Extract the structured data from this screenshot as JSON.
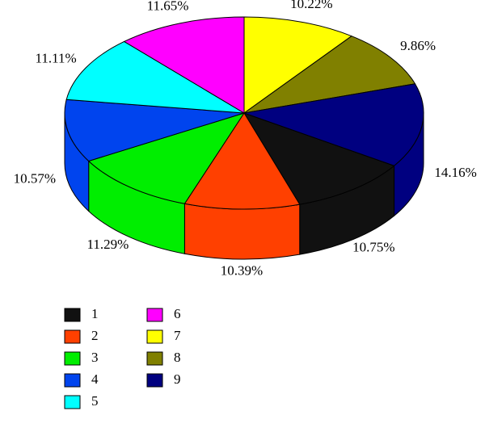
{
  "chart_data": {
    "type": "pie",
    "categories": [
      "1",
      "2",
      "3",
      "4",
      "5",
      "6",
      "7",
      "8",
      "9"
    ],
    "values": [
      10.75,
      10.39,
      11.29,
      10.57,
      11.11,
      11.65,
      10.22,
      9.86,
      14.16
    ],
    "value_labels": [
      "10.75%",
      "10.39%",
      "11.29%",
      "10.57%",
      "11.11%",
      "11.65%",
      "10.22%",
      "9.86%",
      "14.16%"
    ],
    "colors": [
      "#111111",
      "#ff4000",
      "#00ee00",
      "#0044ee",
      "#00ffff",
      "#ff00ff",
      "#ffff00",
      "#808000",
      "#000080"
    ]
  }
}
